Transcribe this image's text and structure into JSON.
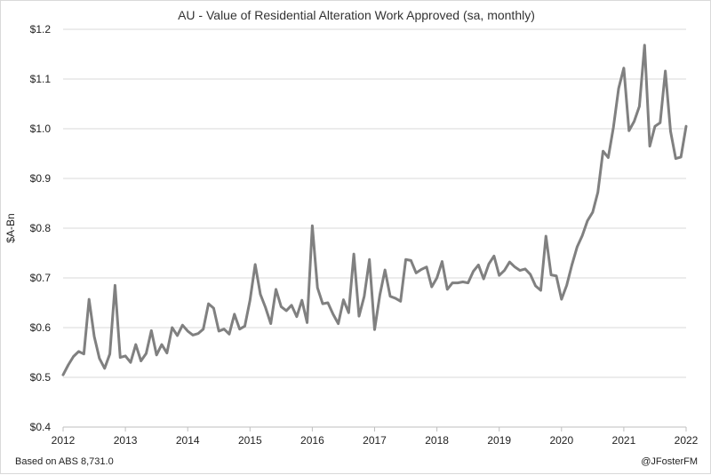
{
  "chart_data": {
    "type": "line",
    "title": "AU - Value of Residential Alteration Work Approved (sa, monthly)",
    "ylabel": "$A-Bn",
    "xlabel": "",
    "ylim": [
      0.4,
      1.2
    ],
    "xlim": [
      2012,
      2022
    ],
    "y_ticks": [
      {
        "value": 0.4,
        "label": "$0.4"
      },
      {
        "value": 0.5,
        "label": "$0.5"
      },
      {
        "value": 0.6,
        "label": "$0.6"
      },
      {
        "value": 0.7,
        "label": "$0.7"
      },
      {
        "value": 0.8,
        "label": "$0.8"
      },
      {
        "value": 0.9,
        "label": "$0.9"
      },
      {
        "value": 1.0,
        "label": "$1.0"
      },
      {
        "value": 1.1,
        "label": "$1.1"
      },
      {
        "value": 1.2,
        "label": "$1.2"
      }
    ],
    "x_ticks": [
      {
        "value": 2012,
        "label": "2012"
      },
      {
        "value": 2013,
        "label": "2013"
      },
      {
        "value": 2014,
        "label": "2014"
      },
      {
        "value": 2015,
        "label": "2015"
      },
      {
        "value": 2016,
        "label": "2016"
      },
      {
        "value": 2017,
        "label": "2017"
      },
      {
        "value": 2018,
        "label": "2018"
      },
      {
        "value": 2019,
        "label": "2019"
      },
      {
        "value": 2020,
        "label": "2020"
      },
      {
        "value": 2021,
        "label": "2021"
      },
      {
        "value": 2022,
        "label": "2022"
      }
    ],
    "grid": "horizontal",
    "series": [
      {
        "name": "Residential Alteration Work Approved",
        "color": "#808080",
        "start": 2012.0,
        "step": 0.08333333,
        "values": [
          0.505,
          0.525,
          0.542,
          0.552,
          0.547,
          0.657,
          0.582,
          0.538,
          0.518,
          0.547,
          0.685,
          0.54,
          0.543,
          0.53,
          0.566,
          0.533,
          0.548,
          0.594,
          0.545,
          0.566,
          0.549,
          0.6,
          0.584,
          0.605,
          0.593,
          0.585,
          0.588,
          0.597,
          0.648,
          0.639,
          0.593,
          0.597,
          0.587,
          0.627,
          0.597,
          0.603,
          0.655,
          0.727,
          0.667,
          0.64,
          0.608,
          0.677,
          0.642,
          0.634,
          0.645,
          0.622,
          0.655,
          0.61,
          0.805,
          0.68,
          0.648,
          0.65,
          0.627,
          0.608,
          0.656,
          0.63,
          0.748,
          0.623,
          0.663,
          0.737,
          0.596,
          0.665,
          0.716,
          0.663,
          0.659,
          0.653,
          0.737,
          0.735,
          0.71,
          0.717,
          0.722,
          0.682,
          0.7,
          0.733,
          0.677,
          0.69,
          0.69,
          0.692,
          0.69,
          0.713,
          0.726,
          0.698,
          0.728,
          0.744,
          0.705,
          0.715,
          0.732,
          0.722,
          0.715,
          0.718,
          0.707,
          0.684,
          0.675,
          0.784,
          0.706,
          0.704,
          0.657,
          0.685,
          0.726,
          0.762,
          0.785,
          0.815,
          0.832,
          0.872,
          0.955,
          0.942,
          1.003,
          1.081,
          1.122,
          0.996,
          1.015,
          1.045,
          1.168,
          0.965,
          1.005,
          1.012,
          1.116,
          0.995,
          0.94,
          0.943,
          1.005
        ]
      }
    ]
  },
  "footer": {
    "source": "Based on ABS 8,731.0",
    "credit": "@JFosterFM"
  }
}
